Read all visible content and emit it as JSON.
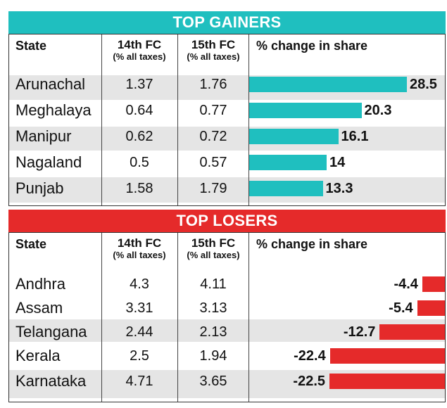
{
  "gainers": {
    "title": "TOP GAINERS",
    "headers": {
      "state": "State",
      "fc14": "14th FC",
      "fc14_sub": "(% all taxes)",
      "fc15": "15th FC",
      "fc15_sub": "(% all taxes)",
      "change": "% change in share"
    },
    "rows": [
      {
        "state": "Arunachal",
        "fc14": "1.37",
        "fc15": "1.76",
        "change": "28.5"
      },
      {
        "state": "Meghalaya",
        "fc14": "0.64",
        "fc15": "0.77",
        "change": "20.3"
      },
      {
        "state": "Manipur",
        "fc14": "0.62",
        "fc15": "0.72",
        "change": "16.1"
      },
      {
        "state": "Nagaland",
        "fc14": "0.5",
        "fc15": "0.57",
        "change": "14"
      },
      {
        "state": "Punjab",
        "fc14": "1.58",
        "fc15": "1.79",
        "change": "13.3"
      }
    ]
  },
  "losers": {
    "title": "TOP LOSERS",
    "headers": {
      "state": "State",
      "fc14": "14th FC",
      "fc14_sub": "(% all taxes)",
      "fc15": "15th FC",
      "fc15_sub": "(% all taxes)",
      "change": "% change in share"
    },
    "rows": [
      {
        "state": "Andhra",
        "fc14": "4.3",
        "fc15": "4.11",
        "change": "-4.4"
      },
      {
        "state": "Assam",
        "fc14": "3.31",
        "fc15": "3.13",
        "change": "-5.4"
      },
      {
        "state": "Telangana",
        "fc14": "2.44",
        "fc15": "2.13",
        "change": "-12.7"
      },
      {
        "state": "Kerala",
        "fc14": "2.5",
        "fc15": "1.94",
        "change": "-22.4"
      },
      {
        "state": "Karnataka",
        "fc14": "4.71",
        "fc15": "3.65",
        "change": "-22.5"
      }
    ]
  },
  "colors": {
    "gain": "#1fbfbf",
    "loss": "#e52a2a",
    "stripe": "#e5e5e5"
  },
  "chart_data": [
    {
      "type": "bar",
      "title": "TOP GAINERS",
      "categories": [
        "Arunachal",
        "Meghalaya",
        "Manipur",
        "Nagaland",
        "Punjab"
      ],
      "series": [
        {
          "name": "14th FC (% all taxes)",
          "values": [
            1.37,
            0.64,
            0.62,
            0.5,
            1.58
          ]
        },
        {
          "name": "15th FC (% all taxes)",
          "values": [
            1.76,
            0.77,
            0.72,
            0.57,
            1.79
          ]
        },
        {
          "name": "% change in share",
          "values": [
            28.5,
            20.3,
            16.1,
            14,
            13.3
          ]
        }
      ],
      "xlabel": "",
      "ylabel": "% change in share",
      "ylim": [
        0,
        28.5
      ]
    },
    {
      "type": "bar",
      "title": "TOP LOSERS",
      "categories": [
        "Andhra",
        "Assam",
        "Telangana",
        "Kerala",
        "Karnataka"
      ],
      "series": [
        {
          "name": "14th FC (% all taxes)",
          "values": [
            4.3,
            3.31,
            2.44,
            2.5,
            4.71
          ]
        },
        {
          "name": "15th FC (% all taxes)",
          "values": [
            4.11,
            3.13,
            2.13,
            1.94,
            3.65
          ]
        },
        {
          "name": "% change in share",
          "values": [
            -4.4,
            -5.4,
            -12.7,
            -22.4,
            -22.5
          ]
        }
      ],
      "xlabel": "",
      "ylabel": "% change in share",
      "ylim": [
        -22.5,
        0
      ]
    }
  ]
}
